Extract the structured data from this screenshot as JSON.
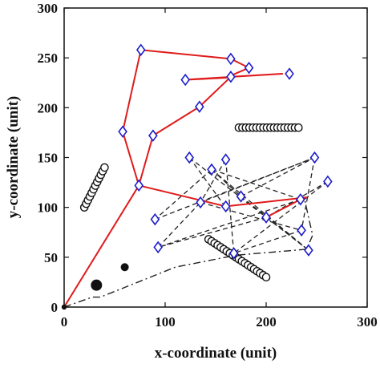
{
  "chart_data": {
    "type": "scatter",
    "title": "",
    "xlabel": "x-coordinate (unit)",
    "ylabel": "y-coordinate (unit)",
    "xlim": [
      0,
      300
    ],
    "ylim": [
      0,
      300
    ],
    "x_ticks": [
      0,
      100,
      200,
      300
    ],
    "y_ticks": [
      0,
      50,
      100,
      150,
      200,
      250,
      300
    ],
    "grid": false,
    "legend": "none",
    "colors": {
      "red_path": "#e01b1b",
      "dashed_path": "#222222",
      "diamond_marker": "#1d1dcc",
      "circle_marker": "#111111"
    },
    "series": [
      {
        "kind": "diamond_markers",
        "points": [
          [
            76,
            258
          ],
          [
            165,
            249
          ],
          [
            183,
            240
          ],
          [
            223,
            234
          ],
          [
            165,
            231
          ],
          [
            120,
            228
          ],
          [
            134,
            201
          ],
          [
            58,
            176
          ],
          [
            88,
            172
          ],
          [
            74,
            122
          ],
          [
            124,
            150
          ],
          [
            160,
            148
          ],
          [
            248,
            150
          ],
          [
            261,
            126
          ],
          [
            146,
            138
          ],
          [
            175,
            111
          ],
          [
            135,
            105
          ],
          [
            160,
            101
          ],
          [
            234,
            108
          ],
          [
            90,
            88
          ],
          [
            200,
            90
          ],
          [
            235,
            77
          ],
          [
            93,
            60
          ],
          [
            168,
            54
          ],
          [
            242,
            57
          ]
        ]
      },
      {
        "kind": "red_path",
        "style": "solid",
        "points": [
          [
            0,
            0
          ],
          [
            74,
            122
          ],
          [
            58,
            176
          ],
          [
            76,
            258
          ],
          [
            165,
            249
          ],
          [
            183,
            240
          ],
          [
            160,
            230
          ],
          [
            120,
            228
          ],
          [
            134,
            229
          ],
          [
            216,
            234
          ],
          [
            165,
            231
          ],
          [
            134,
            201
          ],
          [
            88,
            172
          ],
          [
            74,
            122
          ],
          [
            160,
            101
          ],
          [
            240,
            110
          ],
          [
            234,
            108
          ],
          [
            200,
            90
          ]
        ]
      },
      {
        "kind": "dashed_path",
        "style": "dashed",
        "segments": [
          [
            [
              124,
              150
            ],
            [
              160,
              100
            ]
          ],
          [
            [
              124,
              150
            ],
            [
              200,
              90
            ]
          ],
          [
            [
              146,
              138
            ],
            [
              90,
              88
            ]
          ],
          [
            [
              146,
              138
            ],
            [
              175,
              111
            ]
          ],
          [
            [
              160,
              148
            ],
            [
              168,
              54
            ]
          ],
          [
            [
              160,
              148
            ],
            [
              135,
              105
            ]
          ],
          [
            [
              175,
              111
            ],
            [
              242,
              57
            ]
          ],
          [
            [
              175,
              111
            ],
            [
              248,
              150
            ]
          ],
          [
            [
              248,
              150
            ],
            [
              135,
              105
            ]
          ],
          [
            [
              261,
              126
            ],
            [
              168,
              54
            ]
          ],
          [
            [
              261,
              126
            ],
            [
              200,
              90
            ]
          ],
          [
            [
              234,
              108
            ],
            [
              93,
              60
            ]
          ],
          [
            [
              234,
              108
            ],
            [
              146,
              138
            ]
          ],
          [
            [
              235,
              77
            ],
            [
              168,
              54
            ]
          ],
          [
            [
              242,
              57
            ],
            [
              200,
              90
            ]
          ],
          [
            [
              90,
              88
            ],
            [
              248,
              150
            ]
          ],
          [
            [
              93,
              60
            ],
            [
              135,
              105
            ]
          ],
          [
            [
              200,
              90
            ],
            [
              93,
              60
            ]
          ],
          [
            [
              248,
              150
            ],
            [
              235,
              77
            ]
          ],
          [
            [
              146,
              138
            ],
            [
              242,
              57
            ]
          ],
          [
            [
              135,
              105
            ],
            [
              235,
              77
            ]
          ]
        ]
      },
      {
        "kind": "dashdot_path",
        "style": "dashdot",
        "points": [
          [
            0,
            0
          ],
          [
            28,
            10
          ],
          [
            36,
            10
          ],
          [
            110,
            40
          ],
          [
            170,
            52
          ],
          [
            240,
            58
          ],
          [
            246,
            72
          ],
          [
            238,
            108
          ]
        ]
      },
      {
        "kind": "open_circle_cluster",
        "from": [
          20,
          100
        ],
        "to": [
          40,
          140
        ],
        "count": 12
      },
      {
        "kind": "open_circle_cluster",
        "from": [
          173,
          180
        ],
        "to": [
          232,
          180
        ],
        "count": 18
      },
      {
        "kind": "open_circle_cluster",
        "from": [
          143,
          68
        ],
        "to": [
          200,
          30
        ],
        "count": 20
      },
      {
        "kind": "filled_circles",
        "points": [
          [
            32,
            22
          ],
          [
            60,
            40
          ]
        ],
        "sizes": [
          7,
          5
        ]
      },
      {
        "kind": "origin_marker",
        "points": [
          [
            0,
            0
          ]
        ]
      }
    ]
  }
}
